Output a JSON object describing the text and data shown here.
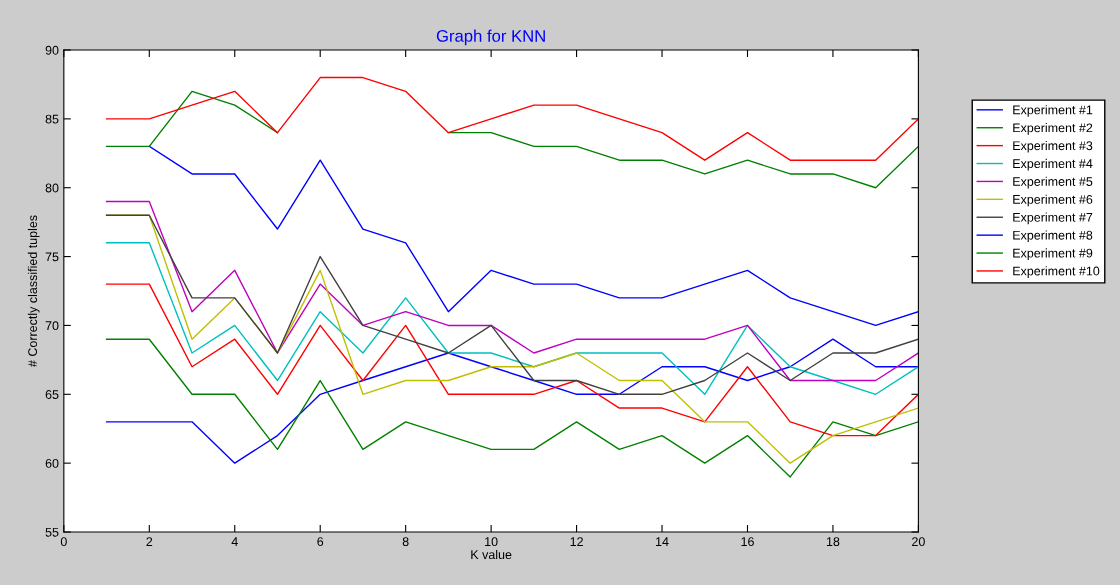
{
  "chart_data": {
    "type": "line",
    "title": "Graph for KNN",
    "xlabel": "K value",
    "ylabel": "# Correctly classified tuples",
    "x": [
      1,
      2,
      3,
      4,
      5,
      6,
      7,
      8,
      9,
      10,
      11,
      12,
      13,
      14,
      15,
      16,
      17,
      18,
      19,
      20
    ],
    "xlim": [
      0,
      20
    ],
    "xticks": [
      0,
      2,
      4,
      6,
      8,
      10,
      12,
      14,
      16,
      18,
      20
    ],
    "ylim": [
      55,
      90
    ],
    "yticks": [
      55,
      60,
      65,
      70,
      75,
      80,
      85,
      90
    ],
    "grid": false,
    "legend": "top right",
    "marker": "none",
    "line_style": "solid",
    "series": [
      {
        "name": "Experiment #1",
        "color": "#0000ff",
        "values": [
          63,
          63,
          63,
          60,
          62,
          65,
          66,
          67,
          68,
          67,
          66,
          65,
          65,
          67,
          67,
          66,
          67,
          69,
          67,
          67
        ]
      },
      {
        "name": "Experiment #2",
        "color": "#008000",
        "values": [
          69,
          69,
          65,
          65,
          61,
          66,
          61,
          63,
          62,
          61,
          61,
          63,
          61,
          62,
          60,
          62,
          59,
          63,
          62,
          63
        ]
      },
      {
        "name": "Experiment #3",
        "color": "#ff0000",
        "values": [
          73,
          73,
          67,
          69,
          65,
          70,
          66,
          70,
          65,
          65,
          65,
          66,
          64,
          64,
          63,
          67,
          63,
          62,
          62,
          65
        ]
      },
      {
        "name": "Experiment #4",
        "color": "#00bfbf",
        "values": [
          76,
          76,
          68,
          70,
          66,
          71,
          68,
          72,
          68,
          68,
          67,
          68,
          68,
          68,
          65,
          70,
          67,
          66,
          65,
          67
        ]
      },
      {
        "name": "Experiment #5",
        "color": "#bf00bf",
        "values": [
          79,
          79,
          71,
          74,
          68,
          73,
          70,
          71,
          70,
          70,
          68,
          69,
          69,
          69,
          69,
          70,
          66,
          66,
          66,
          68
        ]
      },
      {
        "name": "Experiment #6",
        "color": "#bfbf00",
        "values": [
          78,
          78,
          69,
          72,
          68,
          74,
          65,
          66,
          66,
          67,
          67,
          68,
          66,
          66,
          63,
          63,
          60,
          62,
          63,
          64
        ]
      },
      {
        "name": "Experiment #7",
        "color": "#404040",
        "values": [
          78,
          78,
          72,
          72,
          68,
          75,
          70,
          69,
          68,
          70,
          66,
          66,
          65,
          65,
          66,
          68,
          66,
          68,
          68,
          69
        ]
      },
      {
        "name": "Experiment #8",
        "color": "#0000ff",
        "values": [
          null,
          83,
          81,
          81,
          77,
          82,
          77,
          76,
          71,
          74,
          73,
          73,
          72,
          72,
          73,
          74,
          72,
          71,
          70,
          71
        ]
      },
      {
        "name": "Experiment #9",
        "color": "#008000",
        "values": [
          83,
          83,
          87,
          86,
          84,
          null,
          null,
          null,
          84,
          84,
          83,
          83,
          82,
          82,
          81,
          82,
          81,
          81,
          80,
          83
        ]
      },
      {
        "name": "Experiment #10",
        "color": "#ff0000",
        "values": [
          85,
          85,
          86,
          87,
          84,
          88,
          88,
          87,
          84,
          85,
          86,
          86,
          85,
          84,
          82,
          84,
          82,
          82,
          82,
          85
        ]
      }
    ]
  }
}
